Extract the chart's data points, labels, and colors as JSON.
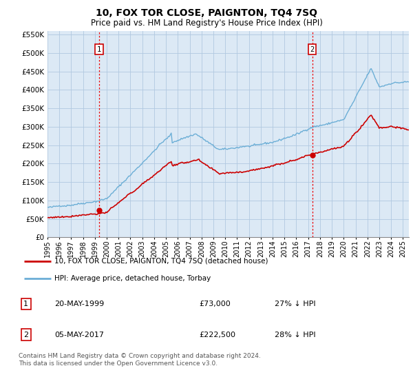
{
  "title": "10, FOX TOR CLOSE, PAIGNTON, TQ4 7SQ",
  "subtitle": "Price paid vs. HM Land Registry's House Price Index (HPI)",
  "ylim": [
    0,
    560000
  ],
  "yticks": [
    0,
    50000,
    100000,
    150000,
    200000,
    250000,
    300000,
    350000,
    400000,
    450000,
    500000,
    550000
  ],
  "ytick_labels": [
    "£0",
    "£50K",
    "£100K",
    "£150K",
    "£200K",
    "£250K",
    "£300K",
    "£350K",
    "£400K",
    "£450K",
    "£500K",
    "£550K"
  ],
  "hpi_color": "#6baed6",
  "price_color": "#cc0000",
  "vline_color": "#ee0000",
  "marker1_date": 1999.37,
  "marker1_price": 73000,
  "marker1_label": "1",
  "marker2_date": 2017.34,
  "marker2_price": 222500,
  "marker2_label": "2",
  "legend_entry1": "10, FOX TOR CLOSE, PAIGNTON, TQ4 7SQ (detached house)",
  "legend_entry2": "HPI: Average price, detached house, Torbay",
  "table_row1_num": "1",
  "table_row1_date": "20-MAY-1999",
  "table_row1_price": "£73,000",
  "table_row1_hpi": "27% ↓ HPI",
  "table_row2_num": "2",
  "table_row2_date": "05-MAY-2017",
  "table_row2_price": "£222,500",
  "table_row2_hpi": "28% ↓ HPI",
  "footer": "Contains HM Land Registry data © Crown copyright and database right 2024.\nThis data is licensed under the Open Government Licence v3.0.",
  "bg_color": "#ffffff",
  "chart_bg_color": "#dce9f5",
  "grid_color": "#b0c8e0",
  "xmin": 1995.0,
  "xmax": 2025.5
}
